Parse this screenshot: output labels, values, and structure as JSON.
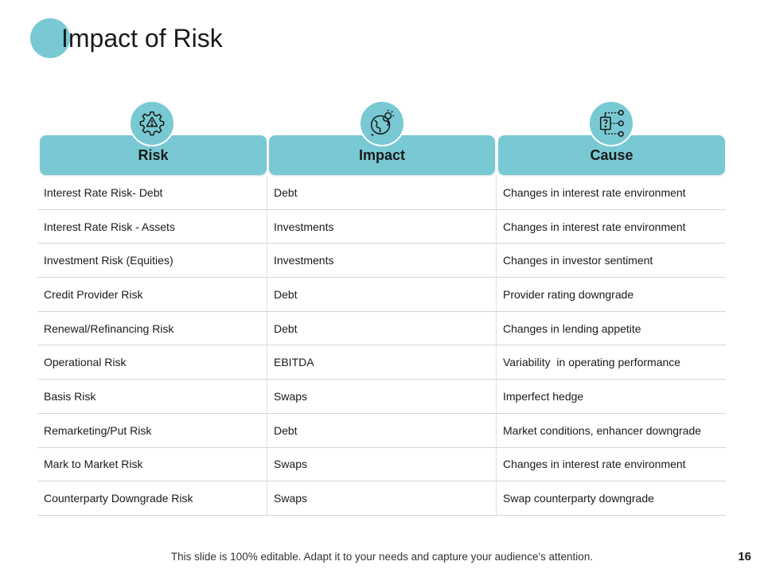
{
  "slide": {
    "title": "Impact of Risk",
    "footer": "This slide is 100% editable. Adapt it to your needs and capture your audience's attention.",
    "page_number": "16",
    "accent_color": "#78c9d3"
  },
  "columns": [
    {
      "label": "Risk",
      "icon": "gear-warning-icon"
    },
    {
      "label": "Impact",
      "icon": "globe-sun-icon"
    },
    {
      "label": "Cause",
      "icon": "flow-question-icon"
    }
  ],
  "rows": [
    {
      "risk": "Interest Rate Risk- Debt",
      "impact": "Debt",
      "cause": "Changes in interest rate environment"
    },
    {
      "risk": "Interest Rate Risk - Assets",
      "impact": "Investments",
      "cause": "Changes in interest rate environment"
    },
    {
      "risk": "Investment Risk (Equities)",
      "impact": "Investments",
      "cause": "Changes in investor sentiment"
    },
    {
      "risk": "Credit Provider Risk",
      "impact": "Debt",
      "cause": "Provider rating downgrade"
    },
    {
      "risk": "Renewal/Refinancing Risk",
      "impact": "Debt",
      "cause": "Changes in lending appetite"
    },
    {
      "risk": "Operational Risk",
      "impact": "EBITDA",
      "cause": "Variability  in operating performance"
    },
    {
      "risk": "Basis Risk",
      "impact": "Swaps",
      "cause": "Imperfect hedge"
    },
    {
      "risk": "Remarketing/Put Risk",
      "impact": "Debt",
      "cause": "Market conditions, enhancer downgrade"
    },
    {
      "risk": "Mark to Market Risk",
      "impact": "Swaps",
      "cause": "Changes in interest rate environment"
    },
    {
      "risk": "Counterparty Downgrade Risk",
      "impact": "Swaps",
      "cause": "Swap counterparty downgrade"
    }
  ]
}
